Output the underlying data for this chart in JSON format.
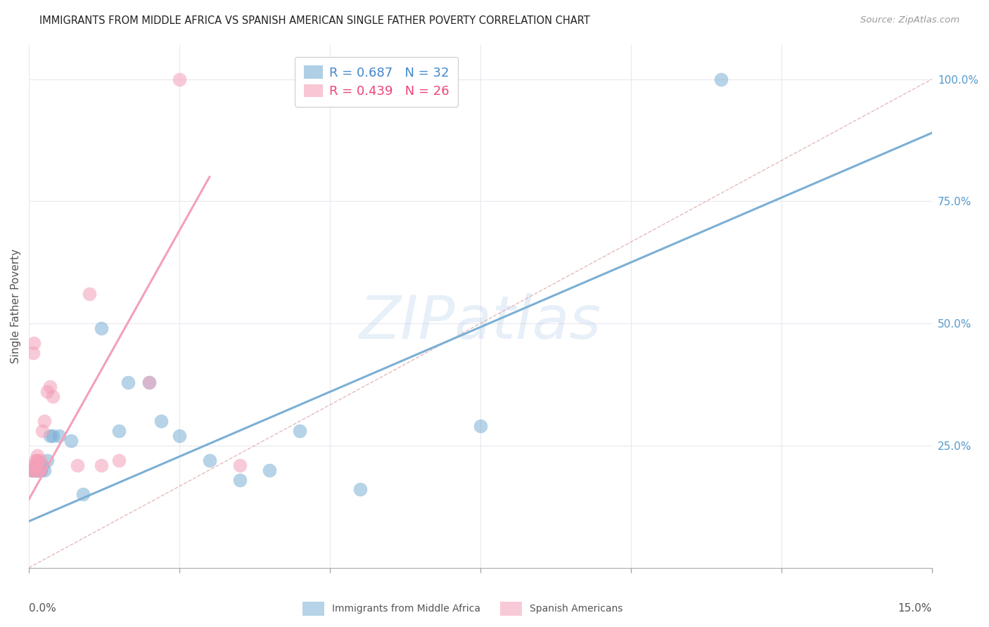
{
  "title": "IMMIGRANTS FROM MIDDLE AFRICA VS SPANISH AMERICAN SINGLE FATHER POVERTY CORRELATION CHART",
  "source": "Source: ZipAtlas.com",
  "ylabel": "Single Father Poverty",
  "xlim": [
    0.0,
    15.0
  ],
  "ylim": [
    0.0,
    107.0
  ],
  "watermark": "ZIPatlas",
  "blue_color": "#7BAFD4",
  "pink_color": "#F4A0B8",
  "legend_blue_R": "R = 0.687",
  "legend_blue_N": "N = 32",
  "legend_pink_R": "R = 0.439",
  "legend_pink_N": "N = 26",
  "blue_scatter_x": [
    0.05,
    0.07,
    0.09,
    0.11,
    0.12,
    0.13,
    0.14,
    0.15,
    0.16,
    0.18,
    0.2,
    0.22,
    0.25,
    0.3,
    0.35,
    0.4,
    0.5,
    0.7,
    0.9,
    1.2,
    1.5,
    1.65,
    2.0,
    2.2,
    2.5,
    3.0,
    3.5,
    4.0,
    4.5,
    5.5,
    7.5,
    11.5
  ],
  "blue_scatter_y": [
    20,
    20,
    20,
    20,
    21,
    20,
    20,
    20,
    20,
    20,
    20,
    21,
    20,
    22,
    27,
    27,
    27,
    26,
    15,
    49,
    28,
    38,
    38,
    30,
    27,
    22,
    18,
    20,
    28,
    16,
    29,
    100
  ],
  "pink_scatter_x": [
    0.04,
    0.06,
    0.07,
    0.08,
    0.09,
    0.1,
    0.11,
    0.12,
    0.13,
    0.14,
    0.15,
    0.16,
    0.18,
    0.2,
    0.22,
    0.25,
    0.3,
    0.35,
    0.4,
    0.8,
    1.0,
    1.2,
    1.5,
    2.0,
    2.5,
    3.5
  ],
  "pink_scatter_y": [
    20,
    20,
    44,
    46,
    21,
    22,
    20,
    20,
    22,
    23,
    22,
    21,
    22,
    20,
    28,
    30,
    36,
    37,
    35,
    21,
    56,
    21,
    22,
    38,
    100,
    21
  ],
  "blue_intercept": 9.5,
  "blue_slope": 5.3,
  "pink_intercept": 14.0,
  "pink_slope": 22.0,
  "pink_line_xmax": 3.0,
  "diag_color": "#F4A0B8",
  "grid_color": "#E8E8F0",
  "ytick_color": "#5599CC",
  "title_color": "#222222",
  "source_color": "#999999",
  "label_color": "#555555"
}
